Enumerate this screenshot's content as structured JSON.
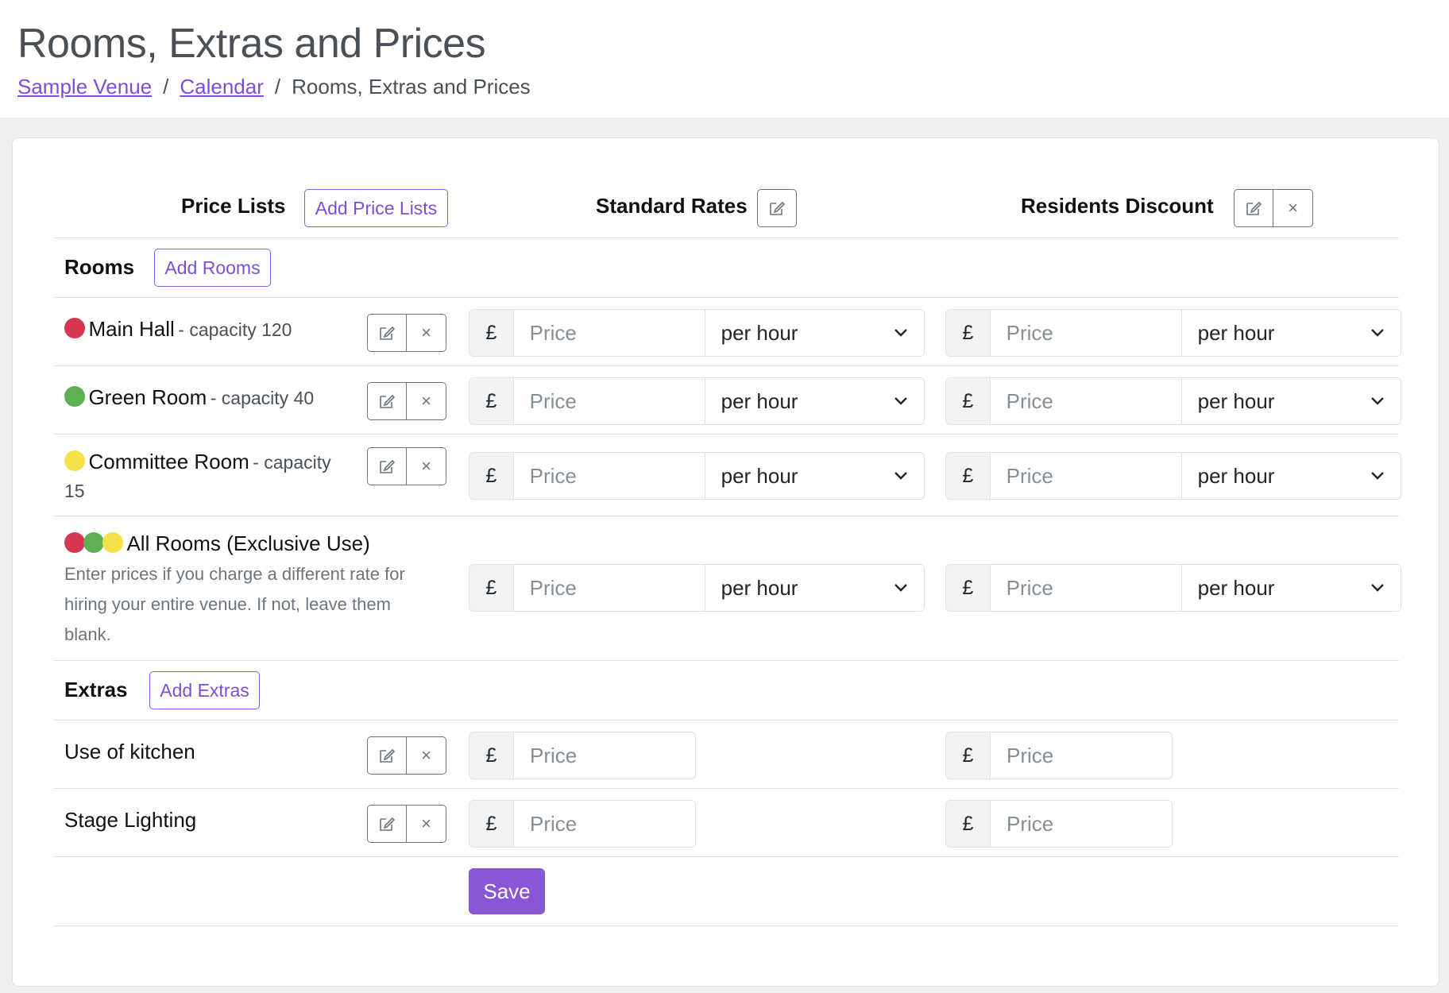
{
  "header": {
    "title": "Rooms, Extras and Prices",
    "breadcrumb": {
      "items": [
        "Sample Venue",
        "Calendar"
      ],
      "separator": "/",
      "current": "Rooms, Extras and Prices"
    }
  },
  "price_lists": {
    "heading": "Price Lists",
    "add_label": "Add Price Lists",
    "columns": [
      {
        "name": "Standard Rates",
        "actions": [
          "edit-icon"
        ]
      },
      {
        "name": "Residents Discount",
        "actions": [
          "edit-icon",
          "close-icon"
        ]
      }
    ]
  },
  "rooms": {
    "heading": "Rooms",
    "add_label": "Add Rooms",
    "items": [
      {
        "name": "Main Hall",
        "capacity": "- capacity 120",
        "color": "#d63651"
      },
      {
        "name": "Green Room",
        "capacity": "- capacity 40",
        "color": "#5db155"
      },
      {
        "name": "Committee Room",
        "capacity": "- capacity",
        "capacity_wrap": "15",
        "color": "#f6e14b"
      }
    ],
    "all_rooms": {
      "name": "All Rooms (Exclusive Use)",
      "description_lines": [
        "Enter prices if you charge a different rate for",
        "hiring your entire venue. If not, leave them",
        "blank."
      ]
    }
  },
  "extras": {
    "heading": "Extras",
    "add_label": "Add Extras",
    "items": [
      {
        "name": "Use of kitchen"
      },
      {
        "name": "Stage Lighting"
      }
    ]
  },
  "price_field": {
    "currency": "£",
    "placeholder": "Price",
    "period": "per hour"
  },
  "save_label": "Save",
  "colors": {
    "accent": "#8a56d8",
    "red": "#d63651",
    "green": "#5db155",
    "yellow": "#f6e14b"
  }
}
